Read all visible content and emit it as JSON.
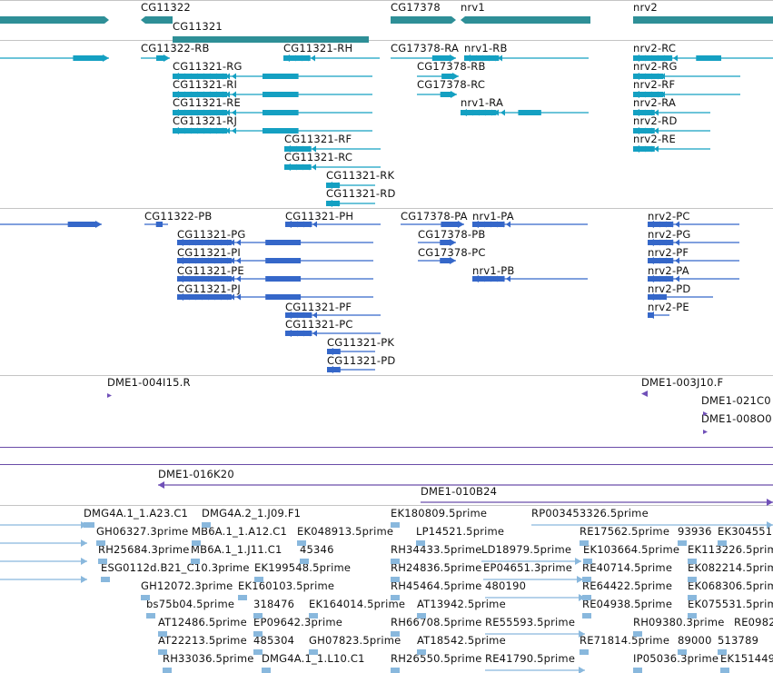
{
  "colors": {
    "gene": "#2e8f97",
    "flybase_mrna": "#14a0c2",
    "refseq_mrna": "#3567c9",
    "clone": "#7050b8",
    "clone_line": "#6a4ca8",
    "est": "#89b8dd",
    "separator": "#c4c4c4"
  },
  "genes": [
    {
      "label": "CG11322"
    },
    {
      "label": "CG11321"
    },
    {
      "label": "CG17378"
    },
    {
      "label": "nrv1"
    },
    {
      "label": "nrv2"
    }
  ],
  "flybase_transcripts": [
    {
      "label": "CG11322-RB"
    },
    {
      "label": "CG11321-RH"
    },
    {
      "label": "CG17378-RA"
    },
    {
      "label": "nrv1-RB"
    },
    {
      "label": "nrv2-RC"
    },
    {
      "label": "CG11321-RG"
    },
    {
      "label": "CG17378-RB"
    },
    {
      "label": "nrv2-RG"
    },
    {
      "label": "CG11321-RI"
    },
    {
      "label": "CG17378-RC"
    },
    {
      "label": "nrv2-RF"
    },
    {
      "label": "CG11321-RE"
    },
    {
      "label": "nrv1-RA"
    },
    {
      "label": "nrv2-RA"
    },
    {
      "label": "CG11321-RJ"
    },
    {
      "label": "nrv2-RD"
    },
    {
      "label": "CG11321-RF"
    },
    {
      "label": "nrv2-RE"
    },
    {
      "label": "CG11321-RC"
    },
    {
      "label": "CG11321-RK"
    },
    {
      "label": "CG11321-RD"
    }
  ],
  "refseq_transcripts": [
    {
      "label": "CG11322-PB"
    },
    {
      "label": "CG11321-PH"
    },
    {
      "label": "CG17378-PA"
    },
    {
      "label": "nrv1-PA"
    },
    {
      "label": "nrv2-PC"
    },
    {
      "label": "CG11321-PG"
    },
    {
      "label": "CG17378-PB"
    },
    {
      "label": "nrv2-PG"
    },
    {
      "label": "CG11321-PI"
    },
    {
      "label": "CG17378-PC"
    },
    {
      "label": "nrv2-PF"
    },
    {
      "label": "CG11321-PE"
    },
    {
      "label": "nrv1-PB"
    },
    {
      "label": "nrv2-PA"
    },
    {
      "label": "CG11321-PJ"
    },
    {
      "label": "nrv2-PD"
    },
    {
      "label": "CG11321-PF"
    },
    {
      "label": "nrv2-PE"
    },
    {
      "label": "CG11321-PC"
    },
    {
      "label": "CG11321-PK"
    },
    {
      "label": "CG11321-PD"
    }
  ],
  "clones": [
    {
      "label": "DME1-004I15.R"
    },
    {
      "label": "DME1-003J10.F"
    },
    {
      "label": "DME1-021C0"
    },
    {
      "label": "DME1-008O0"
    },
    {
      "label": "DME1-016K20"
    },
    {
      "label": "DME1-010B24"
    }
  ],
  "ests": [
    {
      "label": "DMG4A.1_1.A23.C1"
    },
    {
      "label": "DMG4A.2_1.J09.F1"
    },
    {
      "label": "EK180809.5prime"
    },
    {
      "label": "RP003453326.5prime"
    },
    {
      "label": "GH06327.3prime"
    },
    {
      "label": "MB6A.1_1.A12.C1"
    },
    {
      "label": "EK048913.5prime"
    },
    {
      "label": "LP14521.5prime"
    },
    {
      "label": "RE17562.5prime"
    },
    {
      "label": "93936"
    },
    {
      "label": "EK304551"
    },
    {
      "label": "RH25684.3prime"
    },
    {
      "label": "MB6A.1_1.J11.C1"
    },
    {
      "label": "45346"
    },
    {
      "label": "RH34433.5prime"
    },
    {
      "label": "LD18979.5prime"
    },
    {
      "label": "EK103664.5prime"
    },
    {
      "label": "EK113226.5prime"
    },
    {
      "label": "ESG0112d.B21_C10.3prime"
    },
    {
      "label": "EK199548.5prime"
    },
    {
      "label": "RH24836.5prime"
    },
    {
      "label": "EP04651.3prime"
    },
    {
      "label": "RE40714.5prime"
    },
    {
      "label": "EK082214.5prime"
    },
    {
      "label": "GH12072.3prime"
    },
    {
      "label": "EK160103.5prime"
    },
    {
      "label": "RH45464.5prime"
    },
    {
      "label": "480190"
    },
    {
      "label": "RE64422.5prime"
    },
    {
      "label": "EK068306.5prime"
    },
    {
      "label": "bs75b04.5prime"
    },
    {
      "label": "318476"
    },
    {
      "label": "EK164014.5prime"
    },
    {
      "label": "AT13942.5prime"
    },
    {
      "label": "RE04938.5prime"
    },
    {
      "label": "EK075531.5prime"
    },
    {
      "label": "AT12486.5prime"
    },
    {
      "label": "EP09642.3prime"
    },
    {
      "label": "RH66708.5prime"
    },
    {
      "label": "RE55593.5prime"
    },
    {
      "label": "RH09380.3prime"
    },
    {
      "label": "RE0982"
    },
    {
      "label": "AT22213.5prime"
    },
    {
      "label": "485304"
    },
    {
      "label": "GH07823.5prime"
    },
    {
      "label": "AT18542.5prime"
    },
    {
      "label": "RE71814.5prime"
    },
    {
      "label": "89000"
    },
    {
      "label": "513789"
    },
    {
      "label": "RH33036.5prime"
    },
    {
      "label": "DMG4A.1_1.L10.C1"
    },
    {
      "label": "RH26550.5prime"
    },
    {
      "label": "RE41790.5prime"
    },
    {
      "label": "IP05036.3prime"
    },
    {
      "label": "EK151449"
    }
  ]
}
